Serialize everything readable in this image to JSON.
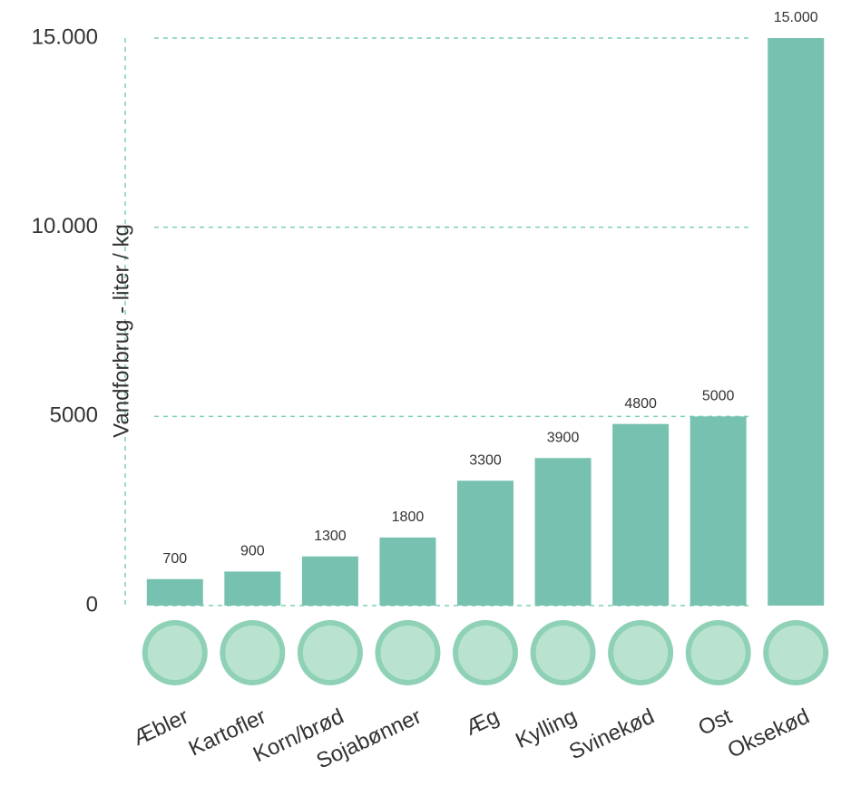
{
  "chart_data": {
    "type": "bar",
    "y_label": "Vandforbrug - liter  / kg",
    "categories": [
      "Æbler",
      "Kartofler",
      "Korn/brød",
      "Sojabønner",
      "Æg",
      "Kylling",
      "Svinekød",
      "Ost",
      "Oksekød"
    ],
    "values": [
      700,
      900,
      1300,
      1800,
      3300,
      3900,
      4800,
      5000,
      15000
    ],
    "value_labels": [
      "700",
      "900",
      "1300",
      "1800",
      "3300",
      "3900",
      "4800",
      "5000",
      "15.000"
    ],
    "color": "#76c1b0",
    "ylim": [
      0,
      15000
    ],
    "yticks": [
      0,
      5000,
      {
        "value": 10000,
        "label": "10.000"
      },
      {
        "value": 15000,
        "label": "15.000"
      }
    ],
    "grid": true
  }
}
